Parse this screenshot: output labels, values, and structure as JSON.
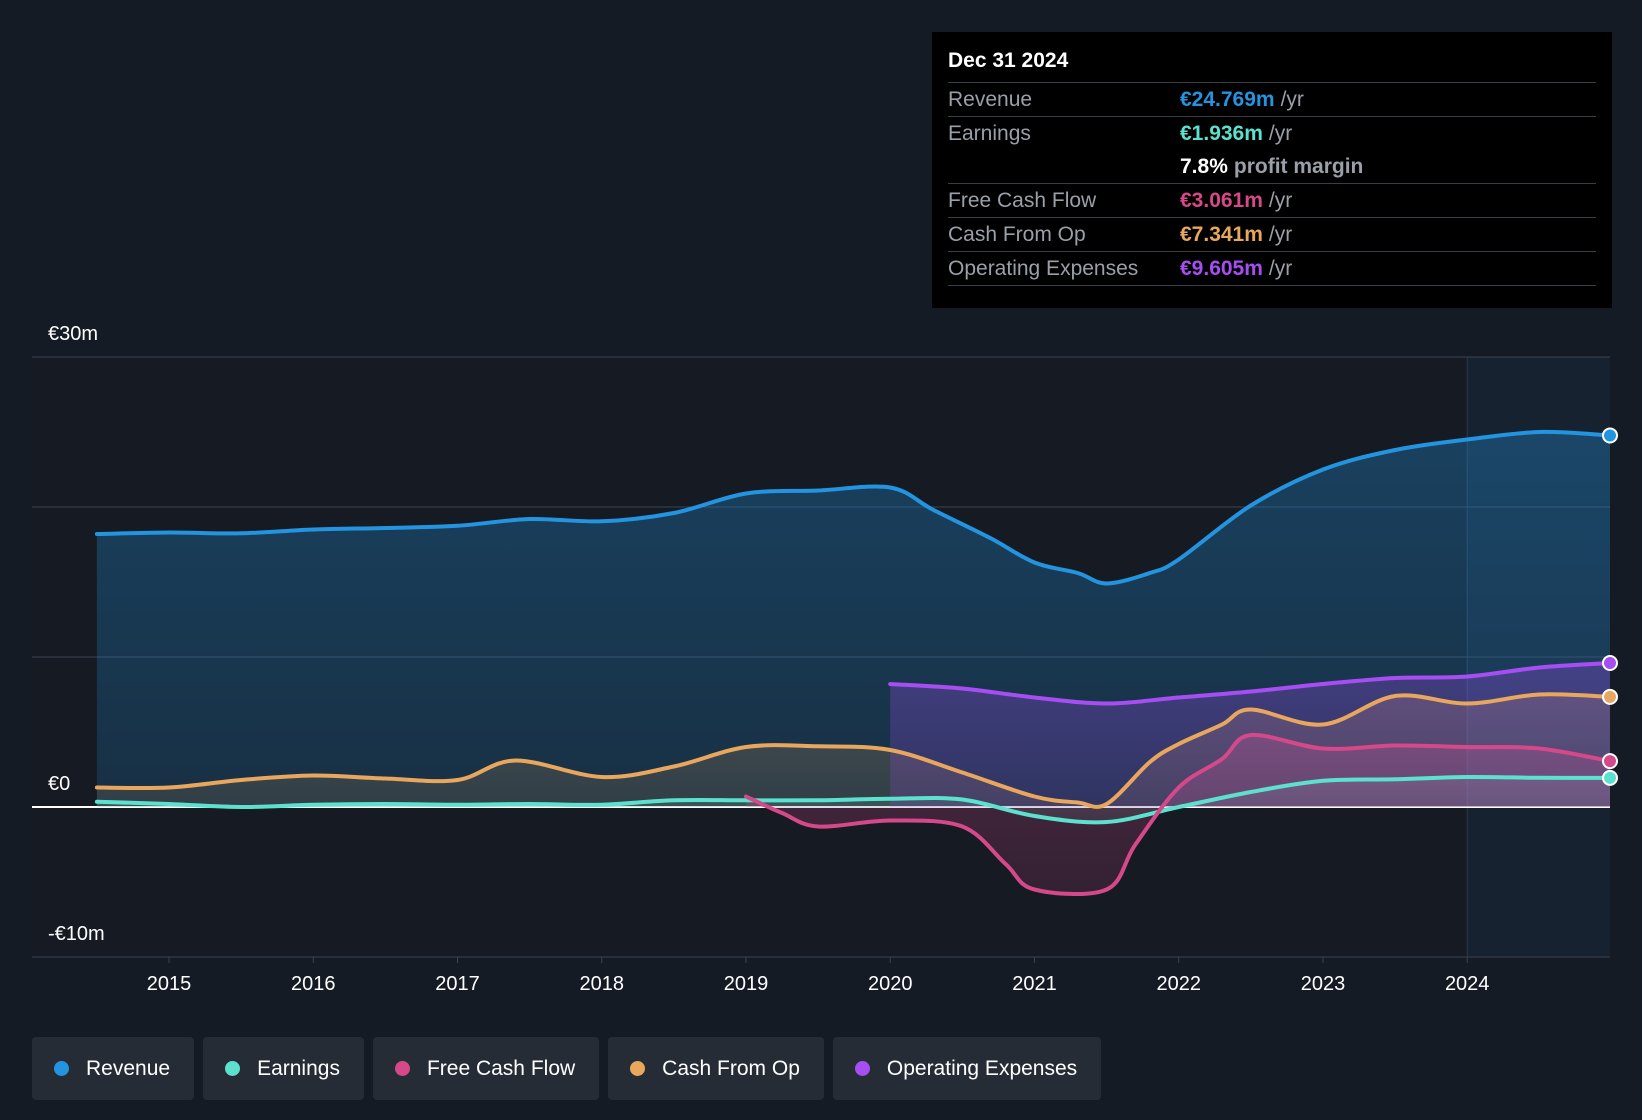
{
  "chart_data": {
    "type": "area",
    "y_unit": "€m",
    "ylim": [
      -10,
      30
    ],
    "y_tick_labels": [
      {
        "value": 30,
        "label": "€30m"
      },
      {
        "value": 0,
        "label": "€0"
      },
      {
        "value": -10,
        "label": "-€10m"
      }
    ],
    "x_tick_labels": [
      "2015",
      "2016",
      "2017",
      "2018",
      "2019",
      "2020",
      "2021",
      "2022",
      "2023",
      "2024"
    ],
    "x_tick_values": [
      2015,
      2016,
      2017,
      2018,
      2019,
      2020,
      2021,
      2022,
      2023,
      2024
    ],
    "xlim": [
      2014.05,
      2024.99
    ],
    "highlight_range": [
      2024.0,
      2024.99
    ],
    "series": [
      {
        "name": "Revenue",
        "color": "#2394df",
        "points": [
          [
            2014.5,
            18.2
          ],
          [
            2015,
            18.3
          ],
          [
            2015.5,
            18.25
          ],
          [
            2016,
            18.5
          ],
          [
            2016.5,
            18.6
          ],
          [
            2017,
            18.75
          ],
          [
            2017.5,
            19.2
          ],
          [
            2018,
            19.05
          ],
          [
            2018.5,
            19.6
          ],
          [
            2019,
            20.9
          ],
          [
            2019.5,
            21.1
          ],
          [
            2020,
            21.3
          ],
          [
            2020.3,
            19.8
          ],
          [
            2020.7,
            17.9
          ],
          [
            2021,
            16.3
          ],
          [
            2021.3,
            15.6
          ],
          [
            2021.5,
            14.9
          ],
          [
            2021.8,
            15.6
          ],
          [
            2022,
            16.5
          ],
          [
            2022.5,
            20.1
          ],
          [
            2023,
            22.5
          ],
          [
            2023.5,
            23.8
          ],
          [
            2024,
            24.5
          ],
          [
            2024.5,
            25.0
          ],
          [
            2024.99,
            24.77
          ]
        ]
      },
      {
        "name": "Earnings",
        "color": "#5ce1cf",
        "points": [
          [
            2014.5,
            0.35
          ],
          [
            2015,
            0.2
          ],
          [
            2015.5,
            0.0
          ],
          [
            2016,
            0.15
          ],
          [
            2016.5,
            0.2
          ],
          [
            2017,
            0.15
          ],
          [
            2017.5,
            0.2
          ],
          [
            2018,
            0.15
          ],
          [
            2018.5,
            0.45
          ],
          [
            2019,
            0.45
          ],
          [
            2019.5,
            0.45
          ],
          [
            2020,
            0.55
          ],
          [
            2020.5,
            0.5
          ],
          [
            2021,
            -0.6
          ],
          [
            2021.5,
            -1.0
          ],
          [
            2022,
            0.0
          ],
          [
            2022.5,
            1.0
          ],
          [
            2023,
            1.75
          ],
          [
            2023.5,
            1.85
          ],
          [
            2024,
            2.0
          ],
          [
            2024.5,
            1.95
          ],
          [
            2024.99,
            1.94
          ]
        ]
      },
      {
        "name": "Free Cash Flow",
        "color": "#d54889",
        "points": [
          [
            2019,
            0.7
          ],
          [
            2019.25,
            -0.4
          ],
          [
            2019.5,
            -1.3
          ],
          [
            2020,
            -0.9
          ],
          [
            2020.5,
            -1.3
          ],
          [
            2020.8,
            -3.8
          ],
          [
            2021,
            -5.5
          ],
          [
            2021.5,
            -5.5
          ],
          [
            2021.7,
            -2.5
          ],
          [
            2022,
            1.3
          ],
          [
            2022.3,
            3.2
          ],
          [
            2022.5,
            4.8
          ],
          [
            2023,
            3.9
          ],
          [
            2023.5,
            4.1
          ],
          [
            2024,
            4.0
          ],
          [
            2024.5,
            3.9
          ],
          [
            2024.99,
            3.06
          ]
        ]
      },
      {
        "name": "Cash From Op",
        "color": "#e8a75d",
        "points": [
          [
            2014.5,
            1.3
          ],
          [
            2015,
            1.3
          ],
          [
            2015.5,
            1.8
          ],
          [
            2016,
            2.1
          ],
          [
            2016.5,
            1.9
          ],
          [
            2017,
            1.8
          ],
          [
            2017.4,
            3.1
          ],
          [
            2018,
            2.0
          ],
          [
            2018.5,
            2.7
          ],
          [
            2019,
            4.0
          ],
          [
            2019.5,
            4.05
          ],
          [
            2020,
            3.8
          ],
          [
            2020.5,
            2.3
          ],
          [
            2021,
            0.7
          ],
          [
            2021.3,
            0.3
          ],
          [
            2021.5,
            0.2
          ],
          [
            2021.8,
            3.0
          ],
          [
            2022,
            4.2
          ],
          [
            2022.3,
            5.5
          ],
          [
            2022.5,
            6.5
          ],
          [
            2023,
            5.5
          ],
          [
            2023.5,
            7.4
          ],
          [
            2024,
            6.9
          ],
          [
            2024.5,
            7.5
          ],
          [
            2024.99,
            7.34
          ]
        ]
      },
      {
        "name": "Operating Expenses",
        "color": "#a64ef2",
        "points": [
          [
            2020,
            8.2
          ],
          [
            2020.5,
            7.9
          ],
          [
            2021,
            7.3
          ],
          [
            2021.5,
            6.9
          ],
          [
            2022,
            7.3
          ],
          [
            2022.5,
            7.7
          ],
          [
            2023,
            8.2
          ],
          [
            2023.5,
            8.6
          ],
          [
            2024,
            8.7
          ],
          [
            2024.5,
            9.3
          ],
          [
            2024.99,
            9.6
          ]
        ]
      }
    ]
  },
  "tooltip": {
    "date": "Dec 31 2024",
    "revenue_label": "Revenue",
    "revenue_value": "€24.769m",
    "revenue_unit": "/yr",
    "earnings_label": "Earnings",
    "earnings_value": "€1.936m",
    "earnings_unit": "/yr",
    "margin_value": "7.8%",
    "margin_label": "profit margin",
    "fcf_label": "Free Cash Flow",
    "fcf_value": "€3.061m",
    "fcf_unit": "/yr",
    "cfo_label": "Cash From Op",
    "cfo_value": "€7.341m",
    "cfo_unit": "/yr",
    "opex_label": "Operating Expenses",
    "opex_value": "€9.605m",
    "opex_unit": "/yr"
  },
  "legend": [
    {
      "label": "Revenue",
      "color": "#2394df"
    },
    {
      "label": "Earnings",
      "color": "#5ce1cf"
    },
    {
      "label": "Free Cash Flow",
      "color": "#d54889"
    },
    {
      "label": "Cash From Op",
      "color": "#e8a75d"
    },
    {
      "label": "Operating Expenses",
      "color": "#a64ef2"
    }
  ]
}
